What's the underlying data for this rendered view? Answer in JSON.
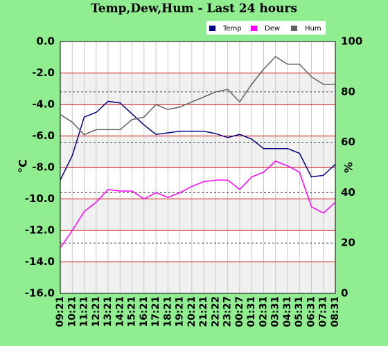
{
  "chart_data": {
    "type": "line",
    "title": "Temp,Dew,Hum - Last 24 hours",
    "ylabel": "°C",
    "y2label": "%",
    "categories": [
      "09:21",
      "10:21",
      "11:21",
      "12:21",
      "13:21",
      "14:21",
      "15:21",
      "16:21",
      "17:21",
      "18:21",
      "19:21",
      "20:21",
      "21:21",
      "22:22",
      "23:27",
      "00:27",
      "01:31",
      "02:31",
      "03:31",
      "04:31",
      "05:31",
      "06:31",
      "07:31",
      "08:31"
    ],
    "series": [
      {
        "name": "Temp",
        "color": "#000080",
        "values": [
          -8.8,
          -7.25,
          -4.8,
          -4.5,
          -3.8,
          -3.9,
          -4.6,
          -5.3,
          -5.9,
          -5.8,
          -5.7,
          -5.7,
          -5.7,
          -5.85,
          -6.1,
          -5.9,
          -6.2,
          -6.8,
          -6.8,
          -6.8,
          -7.1,
          -8.6,
          -8.5,
          -7.8
        ]
      },
      {
        "name": "Dew",
        "color": "#ff00ff",
        "values": [
          -13.1,
          -12.0,
          -10.8,
          -10.2,
          -9.4,
          -9.5,
          -9.5,
          -10.0,
          -9.6,
          -9.9,
          -9.6,
          -9.2,
          -8.9,
          -8.8,
          -8.8,
          -9.4,
          -8.6,
          -8.3,
          -7.6,
          -7.9,
          -8.3,
          -10.5,
          -10.9,
          -10.2
        ]
      },
      {
        "name": "Hum",
        "color": "#606060",
        "axis": "y2",
        "values": [
          71,
          68,
          63,
          65,
          65,
          65,
          69,
          70,
          75,
          73,
          74,
          76,
          78,
          80,
          81,
          76,
          83,
          89,
          94,
          91,
          91,
          86,
          83,
          83
        ]
      }
    ],
    "ylim": [
      -16,
      0
    ],
    "yticks": [
      {
        "value": 0,
        "label": "0.0"
      },
      {
        "value": -2,
        "label": "-2.0"
      },
      {
        "value": -4,
        "label": "-4.0"
      },
      {
        "value": -6,
        "label": "-6.0"
      },
      {
        "value": -8,
        "label": "-8.0"
      },
      {
        "value": -10,
        "label": "-10.0"
      },
      {
        "value": -12,
        "label": "-12.0"
      },
      {
        "value": -14,
        "label": "-14.0"
      },
      {
        "value": -16,
        "label": "-16.0"
      }
    ],
    "y2lim": [
      0,
      100
    ],
    "y2ticks": [
      0,
      20,
      40,
      60,
      80,
      100
    ],
    "grid": true
  }
}
